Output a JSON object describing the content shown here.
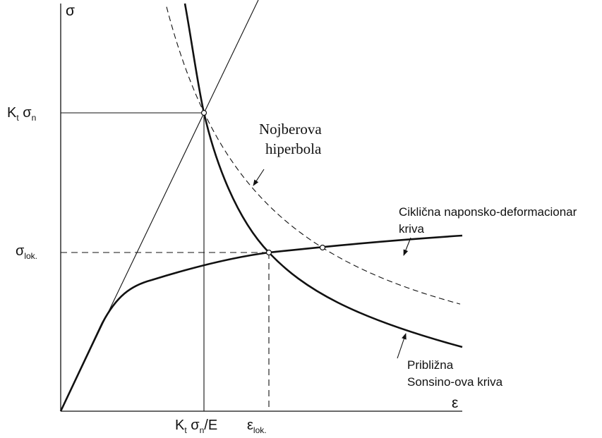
{
  "labels": {
    "y_axis": "σ",
    "x_axis": "ε",
    "kt_sigma_n": [
      "K",
      "t",
      " σ",
      "n"
    ],
    "sigma_lok": [
      "σ",
      "lok."
    ],
    "kt_sigma_n_e": [
      "K",
      "t",
      " σ",
      "n",
      "/E"
    ],
    "eps_lok": [
      "ε",
      "lok."
    ],
    "neuber": [
      "Nojberova",
      "hiperbola"
    ],
    "cyclic": [
      "Ciklična naponsko-deformacionar",
      "kriva"
    ],
    "sonsino": [
      "Približna",
      "Sonsino-ova kriva"
    ]
  }
}
